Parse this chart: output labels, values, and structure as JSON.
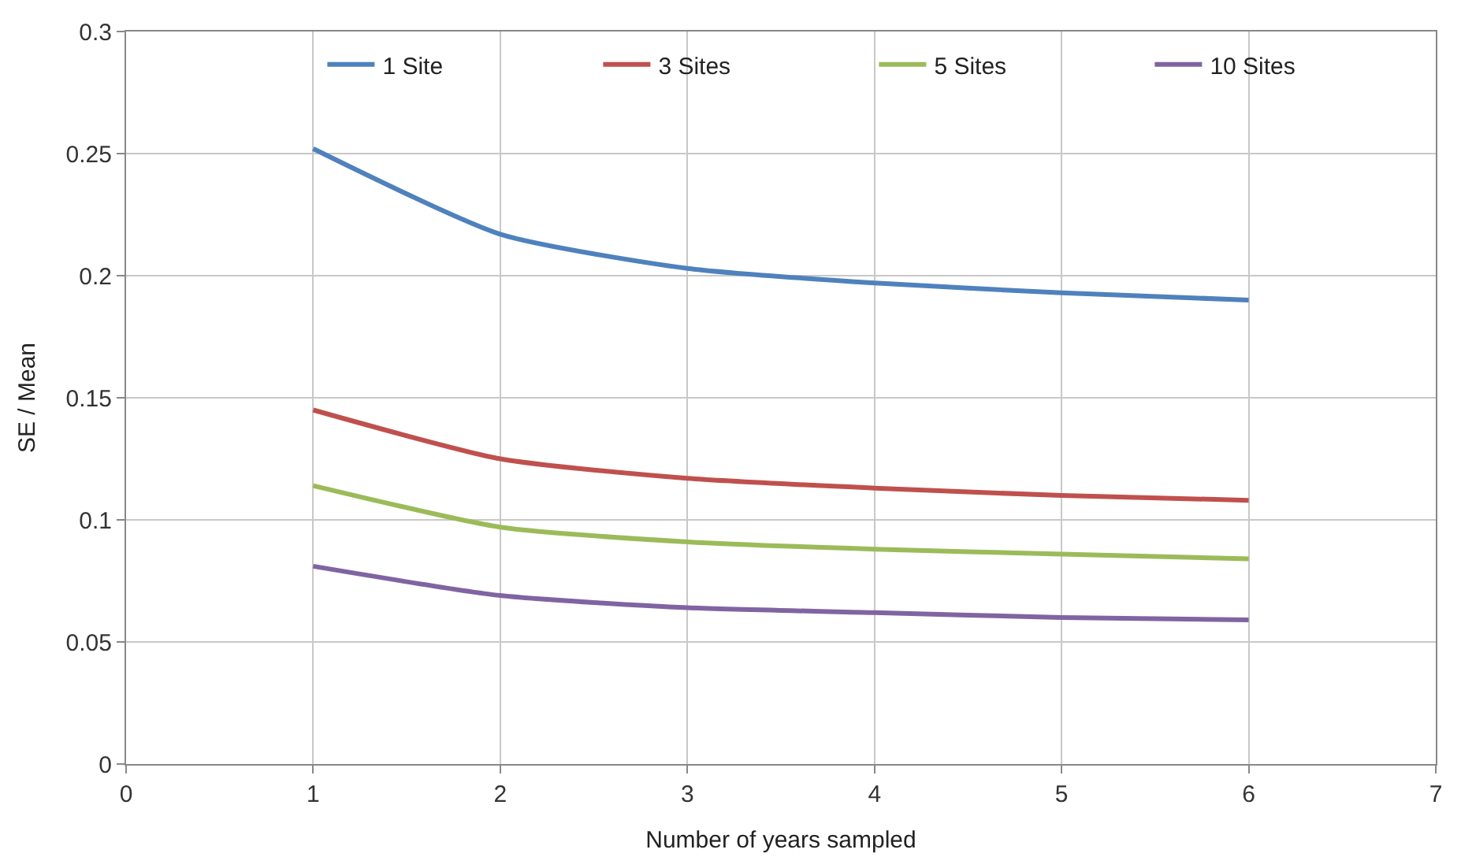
{
  "chart_data": {
    "type": "line",
    "xlabel": "Number of years sampled",
    "ylabel": "SE / Mean",
    "x": [
      1,
      2,
      3,
      4,
      5,
      6
    ],
    "series": [
      {
        "name": "1 Site",
        "color": "#4f81bd",
        "values": [
          0.252,
          0.217,
          0.203,
          0.197,
          0.193,
          0.19
        ]
      },
      {
        "name": "3 Sites",
        "color": "#c0504d",
        "values": [
          0.145,
          0.125,
          0.117,
          0.113,
          0.11,
          0.108
        ]
      },
      {
        "name": "5 Sites",
        "color": "#9bbb59",
        "values": [
          0.114,
          0.097,
          0.091,
          0.088,
          0.086,
          0.084
        ]
      },
      {
        "name": "10 Sites",
        "color": "#8064a2",
        "values": [
          0.081,
          0.069,
          0.064,
          0.062,
          0.06,
          0.059
        ]
      }
    ],
    "xlim": [
      0,
      7
    ],
    "xticks": [
      0,
      1,
      2,
      3,
      4,
      5,
      6,
      7
    ],
    "ylim": [
      0,
      0.3
    ],
    "yticks": [
      0,
      0.05,
      0.1,
      0.15,
      0.2,
      0.25,
      0.3
    ],
    "grid": true,
    "legend": "top right",
    "marker": "none",
    "line_style": "solid"
  }
}
